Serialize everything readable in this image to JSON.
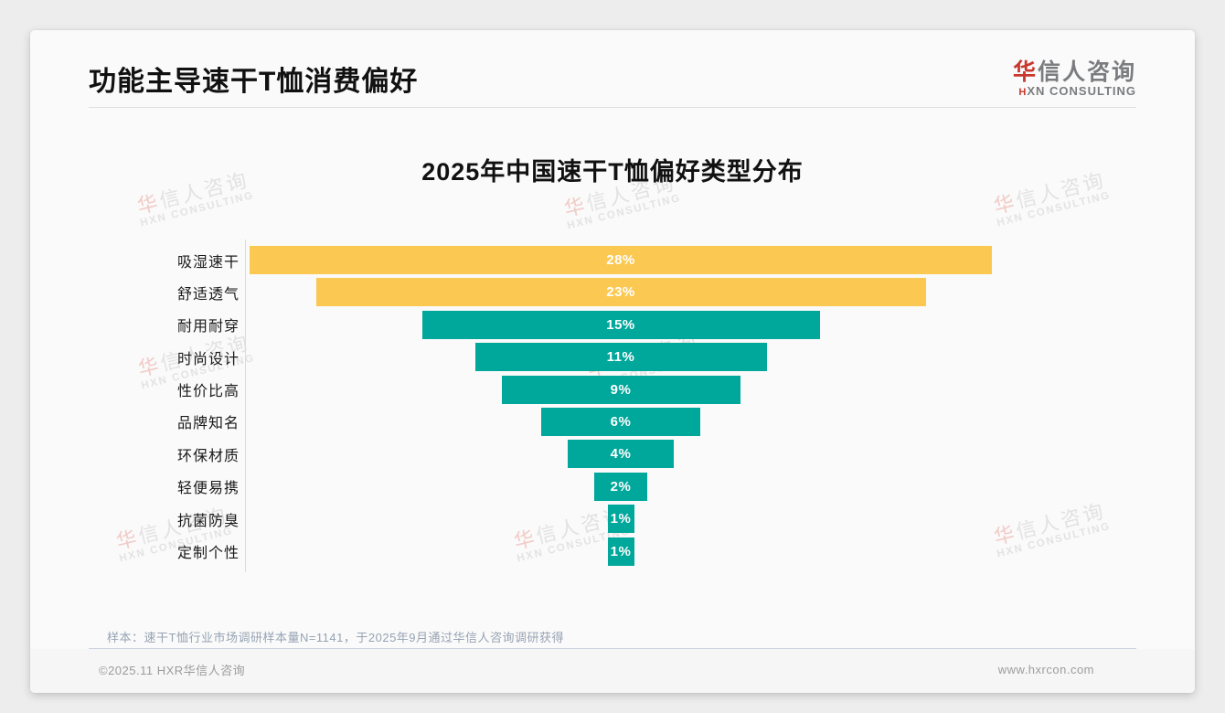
{
  "header": {
    "title": "功能主导速干T恤消费偏好"
  },
  "logo": {
    "zh_accent": "华",
    "zh_rest": "信人咨询",
    "en_accent": "H",
    "en_rest": "XN CONSULTING"
  },
  "watermark": {
    "zh_accent": "华",
    "zh_rest": "信人咨询",
    "en": "HXN CONSULTING"
  },
  "chart_data": {
    "type": "bar",
    "variant": "horizontal-centered-funnel",
    "title": "2025年中国速干T恤偏好类型分布",
    "categories": [
      "吸湿速干",
      "舒适透气",
      "耐用耐穿",
      "时尚设计",
      "性价比高",
      "品牌知名",
      "环保材质",
      "轻便易携",
      "抗菌防臭",
      "定制个性"
    ],
    "values": [
      28,
      23,
      15,
      11,
      9,
      6,
      4,
      2,
      1,
      1
    ],
    "value_labels": [
      "28%",
      "23%",
      "15%",
      "11%",
      "9%",
      "6%",
      "4%",
      "2%",
      "1%",
      "1%"
    ],
    "xlabel": "",
    "ylabel": "",
    "xlim": [
      0,
      28
    ],
    "grid": "off",
    "legend": "none",
    "bar_colors": [
      "#FBC851",
      "#FBC851",
      "#00A79B",
      "#00A79B",
      "#00A79B",
      "#00A79B",
      "#00A79B",
      "#00A79B",
      "#00A79B",
      "#00A79B"
    ],
    "highlight_color": "#FBC851",
    "base_color": "#00A79B",
    "value_label_color": "#FFFFFF"
  },
  "footer": {
    "note": "样本：速干T恤行业市场调研样本量N=1141，于2025年9月通过华信人咨询调研获得",
    "copyright": "©2025.11 HXR华信人咨询",
    "website": "www.hxrcon.com"
  },
  "colors": {
    "accent_red": "#C8382E",
    "page_bg": "#EDEDED",
    "card_bg": "#FAFAFA"
  }
}
